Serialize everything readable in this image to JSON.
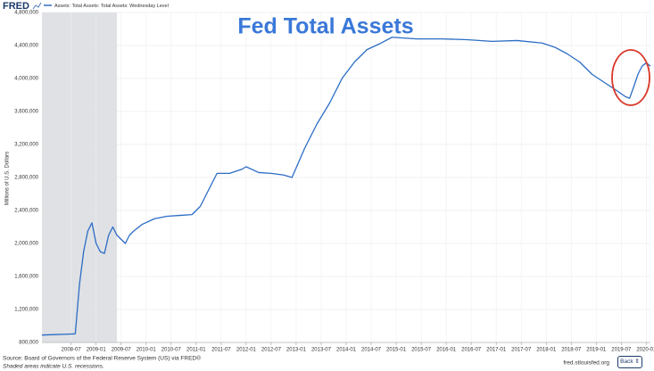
{
  "chart_data": {
    "type": "line",
    "title": "Fed Total Assets",
    "logo": "FRED",
    "y_label": "Millions of U.S. Dollars",
    "source": "Source: Board of Governors of the Federal Reserve System (US) via FRED®",
    "recession_note": "Shaded areas indicate U.S. recessions.",
    "site": "fred.stlouisfed.org",
    "back_button": "Back",
    "recessions": [
      {
        "start": "2007-12",
        "end": "2009-06"
      }
    ],
    "x": [
      "2007-12",
      "2008-03",
      "2008-06",
      "2008-08",
      "2008-09",
      "2008-10",
      "2008-11",
      "2008-12",
      "2009-01",
      "2009-02",
      "2009-03",
      "2009-04",
      "2009-05",
      "2009-06",
      "2009-07",
      "2009-08",
      "2009-09",
      "2009-10",
      "2009-12",
      "2010-03",
      "2010-06",
      "2010-09",
      "2010-12",
      "2011-02",
      "2011-04",
      "2011-06",
      "2011-09",
      "2011-12",
      "2012-01",
      "2012-04",
      "2012-07",
      "2012-10",
      "2012-12",
      "2013-03",
      "2013-06",
      "2013-09",
      "2013-12",
      "2014-03",
      "2014-06",
      "2014-09",
      "2014-12",
      "2015-06",
      "2015-12",
      "2016-06",
      "2016-12",
      "2017-06",
      "2017-12",
      "2018-03",
      "2018-06",
      "2018-09",
      "2018-12",
      "2019-03",
      "2019-06",
      "2019-08",
      "2019-09",
      "2019-10",
      "2019-11",
      "2019-12",
      "2020-01",
      "2020-02"
    ],
    "series": [
      {
        "name": "Assets: Total Assets: Total Assets: Wednesday Level",
        "color": "#2b6cc4",
        "values": [
          890000,
          895000,
          900000,
          905000,
          1500000,
          1900000,
          2150000,
          2250000,
          2000000,
          1900000,
          1880000,
          2100000,
          2200000,
          2100000,
          2050000,
          2000000,
          2100000,
          2150000,
          2230000,
          2300000,
          2330000,
          2340000,
          2350000,
          2450000,
          2650000,
          2850000,
          2850000,
          2900000,
          2930000,
          2860000,
          2850000,
          2830000,
          2800000,
          3150000,
          3450000,
          3700000,
          4000000,
          4200000,
          4350000,
          4420000,
          4500000,
          4480000,
          4480000,
          4470000,
          4450000,
          4460000,
          4430000,
          4380000,
          4300000,
          4200000,
          4050000,
          3950000,
          3850000,
          3780000,
          3760000,
          3900000,
          4050000,
          4150000,
          4190000,
          4150000
        ]
      }
    ],
    "xlim": [
      "2007-12",
      "2020-02"
    ],
    "xticks": [
      "2008-07",
      "2009-01",
      "2009-07",
      "2010-01",
      "2010-07",
      "2011-01",
      "2011-07",
      "2012-01",
      "2012-07",
      "2013-01",
      "2013-07",
      "2014-01",
      "2014-07",
      "2015-01",
      "2015-07",
      "2016-01",
      "2016-07",
      "2017-01",
      "2017-07",
      "2018-01",
      "2018-07",
      "2019-01",
      "2019-07",
      "2020-01"
    ],
    "ylim": [
      800000,
      4800000
    ],
    "yticks": [
      {
        "value": 800000,
        "label": "800,000"
      },
      {
        "value": 1200000,
        "label": "1,200,000"
      },
      {
        "value": 1600000,
        "label": "1,600,000"
      },
      {
        "value": 2000000,
        "label": "2,000,000"
      },
      {
        "value": 2400000,
        "label": "2,400,000"
      },
      {
        "value": 2800000,
        "label": "2,800,000"
      },
      {
        "value": 3200000,
        "label": "3,200,000"
      },
      {
        "value": 3600000,
        "label": "3,600,000"
      },
      {
        "value": 4000000,
        "label": "4,000,000"
      },
      {
        "value": 4400000,
        "label": "4,400,000"
      },
      {
        "value": 4800000,
        "label": "4,800,000"
      }
    ],
    "grid": true
  }
}
